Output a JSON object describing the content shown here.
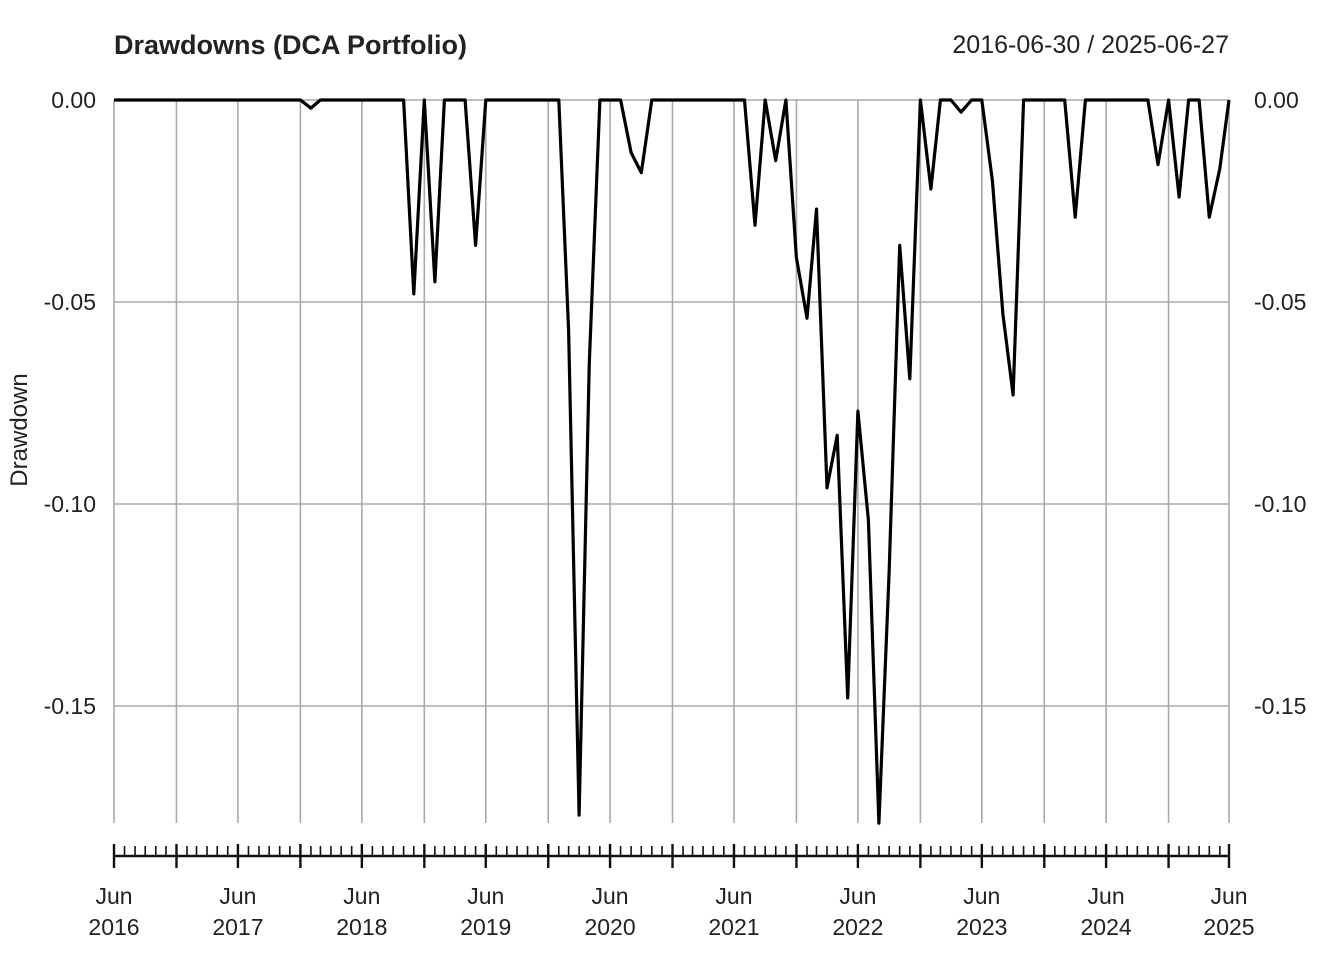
{
  "chart_data": {
    "type": "line",
    "title": "Drawdowns (DCA Portfolio)",
    "date_range": "2016-06-30 / 2025-06-27",
    "ylabel": "Drawdown",
    "ylim": [
      -0.18,
      0.0
    ],
    "y_ticks": [
      0.0,
      -0.05,
      -0.1,
      -0.15
    ],
    "y_tick_labels": [
      "0.00",
      "-0.05",
      "-0.10",
      "-0.15"
    ],
    "xlim": [
      "2016-06-30",
      "2025-06-27"
    ],
    "x_ticks": [
      "2016-06-30",
      "2017-06-30",
      "2018-06-30",
      "2019-06-30",
      "2020-06-30",
      "2021-06-30",
      "2022-06-30",
      "2023-06-30",
      "2024-06-30",
      "2025-06-27"
    ],
    "x_tick_labels": [
      [
        "Jun",
        "2016"
      ],
      [
        "Jun",
        "2017"
      ],
      [
        "Jun",
        "2018"
      ],
      [
        "Jun",
        "2019"
      ],
      [
        "Jun",
        "2020"
      ],
      [
        "Jun",
        "2021"
      ],
      [
        "Jun",
        "2022"
      ],
      [
        "Jun",
        "2023"
      ],
      [
        "Jun",
        "2024"
      ],
      [
        "Jun",
        "2025"
      ]
    ],
    "grid": true,
    "series": [
      {
        "color": "#000000",
        "points": [
          [
            "2016-06-30",
            0.0
          ],
          [
            "2017-06-30",
            0.0
          ],
          [
            "2017-12-31",
            0.0
          ],
          [
            "2018-01-31",
            -0.002
          ],
          [
            "2018-02-28",
            0.0
          ],
          [
            "2018-10-31",
            0.0
          ],
          [
            "2018-11-30",
            -0.048
          ],
          [
            "2018-12-31",
            0.0
          ],
          [
            "2019-01-31",
            -0.045
          ],
          [
            "2019-02-28",
            0.0
          ],
          [
            "2019-04-30",
            0.0
          ],
          [
            "2019-05-31",
            -0.036
          ],
          [
            "2019-06-30",
            0.0
          ],
          [
            "2020-01-31",
            0.0
          ],
          [
            "2020-02-29",
            -0.057
          ],
          [
            "2020-03-31",
            -0.177
          ],
          [
            "2020-04-30",
            -0.065
          ],
          [
            "2020-05-31",
            0.0
          ],
          [
            "2020-07-31",
            0.0
          ],
          [
            "2020-08-31",
            -0.013
          ],
          [
            "2020-09-30",
            -0.018
          ],
          [
            "2020-10-31",
            0.0
          ],
          [
            "2021-07-31",
            0.0
          ],
          [
            "2021-08-31",
            -0.031
          ],
          [
            "2021-09-30",
            0.0
          ],
          [
            "2021-10-31",
            -0.015
          ],
          [
            "2021-11-30",
            0.0
          ],
          [
            "2021-12-31",
            -0.039
          ],
          [
            "2022-01-31",
            -0.054
          ],
          [
            "2022-02-28",
            -0.027
          ],
          [
            "2022-03-31",
            -0.096
          ],
          [
            "2022-04-30",
            -0.083
          ],
          [
            "2022-05-31",
            -0.148
          ],
          [
            "2022-06-30",
            -0.077
          ],
          [
            "2022-07-31",
            -0.104
          ],
          [
            "2022-08-31",
            -0.179
          ],
          [
            "2022-09-30",
            -0.117
          ],
          [
            "2022-10-31",
            -0.036
          ],
          [
            "2022-11-30",
            -0.069
          ],
          [
            "2022-12-31",
            0.0
          ],
          [
            "2023-01-31",
            -0.022
          ],
          [
            "2023-02-28",
            0.0
          ],
          [
            "2023-03-31",
            0.0
          ],
          [
            "2023-04-30",
            -0.003
          ],
          [
            "2023-05-31",
            0.0
          ],
          [
            "2023-06-30",
            0.0
          ],
          [
            "2023-07-31",
            -0.02
          ],
          [
            "2023-08-31",
            -0.053
          ],
          [
            "2023-09-30",
            -0.073
          ],
          [
            "2023-10-31",
            0.0
          ],
          [
            "2024-02-29",
            0.0
          ],
          [
            "2024-03-31",
            -0.029
          ],
          [
            "2024-04-30",
            0.0
          ],
          [
            "2024-10-31",
            0.0
          ],
          [
            "2024-11-30",
            -0.016
          ],
          [
            "2024-12-31",
            0.0
          ],
          [
            "2025-01-31",
            -0.024
          ],
          [
            "2025-02-28",
            0.0
          ],
          [
            "2025-03-31",
            0.0
          ],
          [
            "2025-04-30",
            -0.029
          ],
          [
            "2025-05-31",
            -0.017
          ],
          [
            "2025-06-27",
            0.0
          ]
        ]
      }
    ]
  }
}
